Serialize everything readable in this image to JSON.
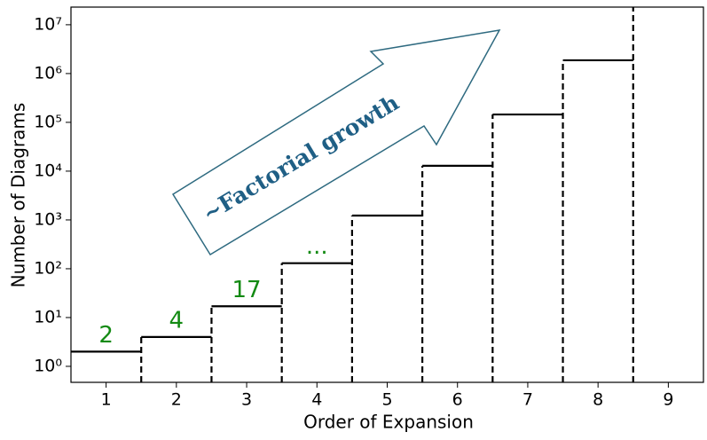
{
  "chart_data": {
    "type": "step",
    "x_label": "Order of Expansion",
    "y_label": "Number of Diagrams",
    "categories": [
      "1",
      "2",
      "3",
      "4",
      "5",
      "6",
      "7",
      "8",
      "9"
    ],
    "values": [
      2,
      4,
      17,
      130,
      1230,
      12900,
      145000,
      1870000,
      null
    ],
    "value_labels": [
      "2",
      "4",
      "17",
      null,
      null,
      null,
      null,
      null,
      null
    ],
    "annotations": [
      {
        "text": "...",
        "category": 3
      },
      {
        "text": "~Factorial growth"
      }
    ],
    "color": "#000000",
    "label_color": "#138a13",
    "log_scale": true,
    "ylim": [
      0.47,
      23000000
    ],
    "yticks": [
      {
        "value": 1,
        "label": "10⁰"
      },
      {
        "value": 10,
        "label": "10¹"
      },
      {
        "value": 100,
        "label": "10²"
      },
      {
        "value": 1000,
        "label": "10³"
      },
      {
        "value": 10000,
        "label": "10⁴"
      },
      {
        "value": 100000,
        "label": "10⁵"
      },
      {
        "value": 1000000,
        "label": "10⁶"
      },
      {
        "value": 10000000,
        "label": "10⁷"
      }
    ]
  }
}
